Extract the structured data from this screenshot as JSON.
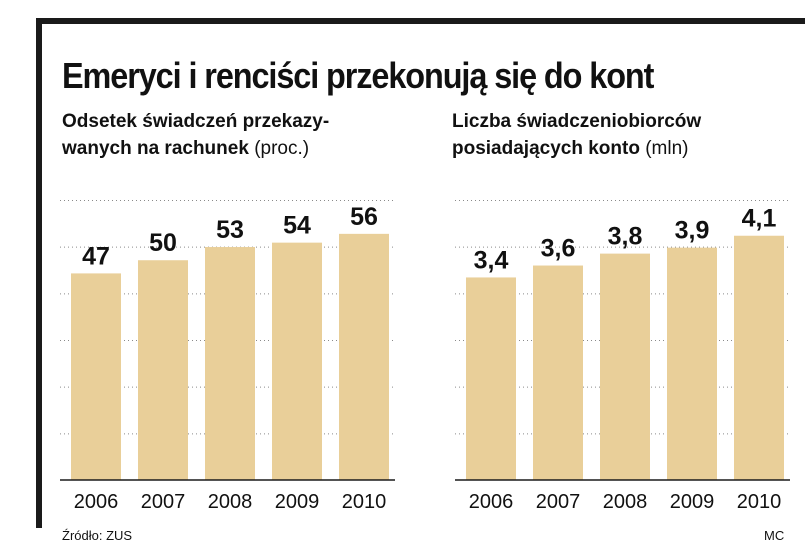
{
  "header": {
    "title": "Emeryci i renciści przekonują się do kont"
  },
  "footer": {
    "source": "Źródło: ZUS",
    "credit": "MC"
  },
  "chart_data": [
    {
      "type": "bar",
      "title_lines": [
        "Odsetek świadczeń przekazy-",
        "wanych na rachunek"
      ],
      "unit": "(proc.)",
      "categories": [
        "2006",
        "2007",
        "2008",
        "2009",
        "2010"
      ],
      "values": [
        47,
        50,
        53,
        54,
        56
      ],
      "value_labels": [
        "47",
        "50",
        "53",
        "54",
        "56"
      ],
      "ylim": [
        0,
        63.7
      ],
      "grid": true,
      "bar_color": "#e9cf99"
    },
    {
      "type": "bar",
      "title_lines": [
        "Liczba świadczeniobiorców",
        "posiadających konto"
      ],
      "unit": "(mln)",
      "categories": [
        "2006",
        "2007",
        "2008",
        "2009",
        "2010"
      ],
      "values": [
        3.4,
        3.6,
        3.8,
        3.9,
        4.1
      ],
      "value_labels": [
        "3,4",
        "3,6",
        "3,8",
        "3,9",
        "4,1"
      ],
      "ylim": [
        0,
        4.7
      ],
      "grid": true,
      "bar_color": "#e9cf99"
    }
  ]
}
